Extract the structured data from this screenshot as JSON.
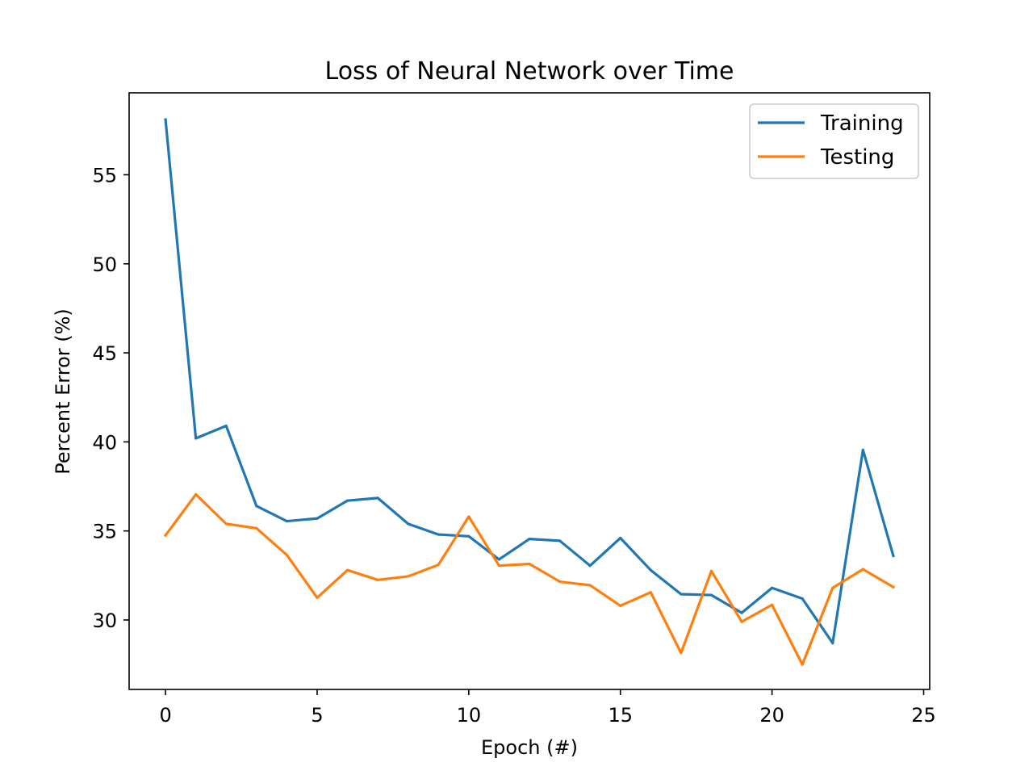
{
  "chart_data": {
    "type": "line",
    "title": "Loss of Neural Network over Time",
    "xlabel": "Epoch (#)",
    "ylabel": "Percent Error (%)",
    "xlim": [
      -1.2,
      25.2
    ],
    "ylim": [
      26.1,
      59.6
    ],
    "xticks": [
      0,
      5,
      10,
      15,
      20,
      25
    ],
    "yticks": [
      30,
      35,
      40,
      45,
      50,
      55
    ],
    "grid": false,
    "legend_position": "upper-right",
    "x": [
      0,
      1,
      2,
      3,
      4,
      5,
      6,
      7,
      8,
      9,
      10,
      11,
      12,
      13,
      14,
      15,
      16,
      17,
      18,
      19,
      20,
      21,
      22,
      23,
      24
    ],
    "series": [
      {
        "name": "Training",
        "color": "#1f77b4",
        "values": [
          58.1,
          40.2,
          40.9,
          36.4,
          35.55,
          35.7,
          36.7,
          36.85,
          35.4,
          34.8,
          34.7,
          33.4,
          34.55,
          34.45,
          33.05,
          34.6,
          32.8,
          31.45,
          31.4,
          30.4,
          31.8,
          31.2,
          28.7,
          39.55,
          33.6
        ]
      },
      {
        "name": "Testing",
        "color": "#ff7f0e",
        "values": [
          34.75,
          37.05,
          35.4,
          35.15,
          33.65,
          31.25,
          32.8,
          32.25,
          32.45,
          33.1,
          35.8,
          33.05,
          33.15,
          32.15,
          31.95,
          30.8,
          31.55,
          28.15,
          32.75,
          29.9,
          30.85,
          27.5,
          31.8,
          32.85,
          31.85
        ]
      }
    ]
  }
}
